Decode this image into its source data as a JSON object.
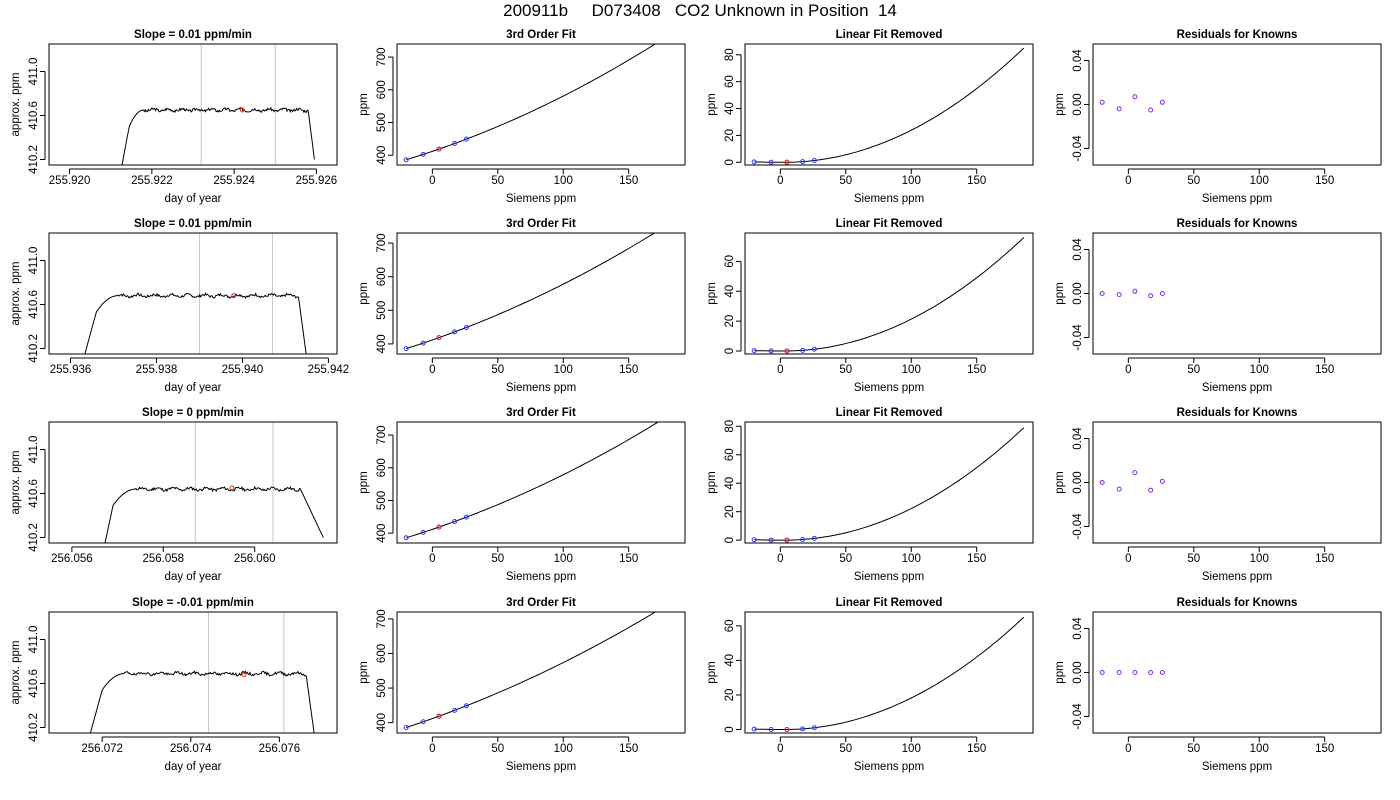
{
  "figure": {
    "title": "200911b     D073408   CO2 Unknown in Position  14"
  },
  "chart_data": [
    {
      "row": 1,
      "panels": [
        {
          "type": "line",
          "title": "Slope =  0.01  ppm/min",
          "xlabel": "day of year",
          "ylabel": "approx. ppm",
          "xlim": [
            255.9195,
            255.9265
          ],
          "ylim": [
            410.15,
            411.25
          ],
          "xticks": [
            "255.920",
            "255.922",
            "255.924",
            "255.926"
          ],
          "xtick_values": [
            255.92,
            255.922,
            255.924,
            255.926
          ],
          "yticks": [
            "410.2",
            "410.6",
            "411.0"
          ],
          "ytick_values": [
            410.2,
            410.6,
            411.0
          ],
          "vlines": [
            255.9232,
            255.925
          ],
          "marker": {
            "x": 255.9242,
            "y": 410.65,
            "color": "#e0301e"
          },
          "trace": {
            "x_start": 255.92125,
            "x_end": 255.92595,
            "plateau": 410.65,
            "rise_x": 255.92145,
            "rise_x2": 255.9218,
            "fall_x": 255.9258,
            "base": 410.1,
            "end_y": 410.2,
            "noise": 0.012,
            "seed": 3
          }
        },
        {
          "type": "line",
          "title": "3rd Order Fit",
          "xlabel": "Siemens ppm",
          "ylabel": "ppm",
          "xlim": [
            -27,
            193
          ],
          "ylim": [
            370,
            740
          ],
          "xticks": [
            "0",
            "50",
            "100",
            "150"
          ],
          "xtick_values": [
            0,
            50,
            100,
            150
          ],
          "yticks": [
            "400",
            "500",
            "600",
            "700"
          ],
          "ytick_values": [
            400,
            500,
            600,
            700
          ],
          "curve": {
            "x0": -20,
            "x1": 186,
            "a": 411.8,
            "b": 1.35,
            "c": 0.0034
          },
          "knowns": [
            -20,
            -7,
            5,
            17,
            26
          ],
          "unknown": 5
        },
        {
          "type": "line",
          "title": "Linear Fit Removed",
          "xlabel": "Siemens ppm",
          "ylabel": "ppm",
          "xlim": [
            -27,
            193
          ],
          "ylim": [
            -2,
            88
          ],
          "xticks": [
            "0",
            "50",
            "100",
            "150"
          ],
          "xtick_values": [
            0,
            50,
            100,
            150
          ],
          "yticks": [
            "0",
            "20",
            "40",
            "60",
            "80"
          ],
          "ytick_values": [
            0,
            20,
            40,
            60,
            80
          ],
          "curve": {
            "x0": -20,
            "x1": 186,
            "ymax": 85
          },
          "knowns": [
            -20,
            -7,
            5,
            17,
            26
          ],
          "unknown": 5
        },
        {
          "type": "scatter",
          "title": "Residuals for Knowns",
          "xlabel": "Siemens ppm",
          "ylabel": "ppm",
          "xlim": [
            -27,
            193
          ],
          "ylim": [
            -0.055,
            0.055
          ],
          "xticks": [
            "0",
            "50",
            "100",
            "150"
          ],
          "xtick_values": [
            0,
            50,
            100,
            150
          ],
          "yticks": [
            "-0.04",
            "0.00",
            "0.04"
          ],
          "ytick_values": [
            -0.04,
            0.0,
            0.04
          ],
          "points": [
            {
              "x": -20,
              "y": 0.002
            },
            {
              "x": -7,
              "y": -0.004
            },
            {
              "x": 5,
              "y": 0.007
            },
            {
              "x": 17,
              "y": -0.005
            },
            {
              "x": 26,
              "y": 0.002
            }
          ]
        }
      ]
    },
    {
      "row": 2,
      "panels": [
        {
          "type": "line",
          "title": "Slope =  0.01  ppm/min",
          "xlabel": "day of year",
          "ylabel": "approx. ppm",
          "xlim": [
            255.9355,
            255.9422
          ],
          "ylim": [
            410.15,
            411.25
          ],
          "xticks": [
            "255.936",
            "255.938",
            "255.940",
            "255.942"
          ],
          "xtick_values": [
            255.936,
            255.938,
            255.94,
            255.942
          ],
          "yticks": [
            "410.2",
            "410.6",
            "411.0"
          ],
          "ytick_values": [
            410.2,
            410.6,
            411.0
          ],
          "vlines": [
            255.939,
            255.9407
          ],
          "marker": {
            "x": 255.9398,
            "y": 410.68,
            "color": "#e0301e"
          },
          "trace": {
            "x_start": 255.9363,
            "x_end": 255.9415,
            "plateau": 410.68,
            "rise_x": 255.9366,
            "rise_x2": 255.9371,
            "fall_x": 255.9413,
            "base": 410.1,
            "end_y": 410.1,
            "noise": 0.012,
            "seed": 7
          }
        },
        {
          "type": "line",
          "title": "3rd Order Fit",
          "xlabel": "Siemens ppm",
          "ylabel": "ppm",
          "xlim": [
            -27,
            193
          ],
          "ylim": [
            370,
            730
          ],
          "xticks": [
            "0",
            "50",
            "100",
            "150"
          ],
          "xtick_values": [
            0,
            50,
            100,
            150
          ],
          "yticks": [
            "400",
            "500",
            "600",
            "700"
          ],
          "ytick_values": [
            400,
            500,
            600,
            700
          ],
          "curve": {
            "x0": -20,
            "x1": 186,
            "a": 411.8,
            "b": 1.35,
            "c": 0.0031
          },
          "knowns": [
            -20,
            -7,
            5,
            17,
            26
          ],
          "unknown": 5
        },
        {
          "type": "line",
          "title": "Linear Fit Removed",
          "xlabel": "Siemens ppm",
          "ylabel": "ppm",
          "xlim": [
            -27,
            193
          ],
          "ylim": [
            -2,
            79
          ],
          "xticks": [
            "0",
            "50",
            "100",
            "150"
          ],
          "xtick_values": [
            0,
            50,
            100,
            150
          ],
          "yticks": [
            "0",
            "20",
            "40",
            "60"
          ],
          "ytick_values": [
            0,
            20,
            40,
            60
          ],
          "curve": {
            "x0": -20,
            "x1": 186,
            "ymax": 76
          },
          "knowns": [
            -20,
            -7,
            5,
            17,
            26
          ],
          "unknown": 5
        },
        {
          "type": "scatter",
          "title": "Residuals for Knowns",
          "xlabel": "Siemens ppm",
          "ylabel": "ppm",
          "xlim": [
            -27,
            193
          ],
          "ylim": [
            -0.055,
            0.055
          ],
          "xticks": [
            "0",
            "50",
            "100",
            "150"
          ],
          "xtick_values": [
            0,
            50,
            100,
            150
          ],
          "yticks": [
            "-0.04",
            "0.00",
            "0.04"
          ],
          "ytick_values": [
            -0.04,
            0.0,
            0.04
          ],
          "points": [
            {
              "x": -20,
              "y": 0.0
            },
            {
              "x": -7,
              "y": -0.001
            },
            {
              "x": 5,
              "y": 0.002
            },
            {
              "x": 17,
              "y": -0.002
            },
            {
              "x": 26,
              "y": 0.0
            }
          ]
        }
      ]
    },
    {
      "row": 3,
      "panels": [
        {
          "type": "line",
          "title": "Slope =  0  ppm/min",
          "xlabel": "day of year",
          "ylabel": "approx. ppm",
          "xlim": [
            256.0555,
            256.0618
          ],
          "ylim": [
            410.15,
            411.25
          ],
          "xticks": [
            "256.056",
            "256.058",
            "256.060"
          ],
          "xtick_values": [
            256.056,
            256.058,
            256.06
          ],
          "yticks": [
            "410.2",
            "410.6",
            "411.0"
          ],
          "ytick_values": [
            410.2,
            410.6,
            411.0
          ],
          "vlines": [
            256.0587,
            256.0604
          ],
          "marker": {
            "x": 256.0595,
            "y": 410.65,
            "color": "#e0301e"
          },
          "trace": {
            "x_start": 256.0567,
            "x_end": 256.0615,
            "plateau": 410.64,
            "rise_x": 256.0569,
            "rise_x2": 256.0574,
            "fall_x": 256.061,
            "base": 410.1,
            "end_y": 410.2,
            "noise": 0.012,
            "seed": 11
          }
        },
        {
          "type": "line",
          "title": "3rd Order Fit",
          "xlabel": "Siemens ppm",
          "ylabel": "ppm",
          "xlim": [
            -27,
            193
          ],
          "ylim": [
            370,
            740
          ],
          "xticks": [
            "0",
            "50",
            "100",
            "150"
          ],
          "xtick_values": [
            0,
            50,
            100,
            150
          ],
          "yticks": [
            "400",
            "500",
            "600",
            "700"
          ],
          "ytick_values": [
            400,
            500,
            600,
            700
          ],
          "curve": {
            "x0": -20,
            "x1": 186,
            "a": 411.8,
            "b": 1.35,
            "c": 0.0032
          },
          "knowns": [
            -20,
            -7,
            5,
            17,
            26
          ],
          "unknown": 5
        },
        {
          "type": "line",
          "title": "Linear Fit Removed",
          "xlabel": "Siemens ppm",
          "ylabel": "ppm",
          "xlim": [
            -27,
            193
          ],
          "ylim": [
            -2,
            83
          ],
          "xticks": [
            "0",
            "50",
            "100",
            "150"
          ],
          "xtick_values": [
            0,
            50,
            100,
            150
          ],
          "yticks": [
            "0",
            "20",
            "40",
            "60",
            "80"
          ],
          "ytick_values": [
            0,
            20,
            40,
            60,
            80
          ],
          "curve": {
            "x0": -20,
            "x1": 186,
            "ymax": 79
          },
          "knowns": [
            -20,
            -7,
            5,
            17,
            26
          ],
          "unknown": 5
        },
        {
          "type": "scatter",
          "title": "Residuals for Knowns",
          "xlabel": "Siemens ppm",
          "ylabel": "ppm",
          "xlim": [
            -27,
            193
          ],
          "ylim": [
            -0.055,
            0.055
          ],
          "xticks": [
            "0",
            "50",
            "100",
            "150"
          ],
          "xtick_values": [
            0,
            50,
            100,
            150
          ],
          "yticks": [
            "-0.04",
            "0.00",
            "0.04"
          ],
          "ytick_values": [
            -0.04,
            0.0,
            0.04
          ],
          "points": [
            {
              "x": -20,
              "y": 0.0
            },
            {
              "x": -7,
              "y": -0.006
            },
            {
              "x": 5,
              "y": 0.009
            },
            {
              "x": 17,
              "y": -0.007
            },
            {
              "x": 26,
              "y": 0.001
            }
          ]
        }
      ]
    },
    {
      "row": 4,
      "panels": [
        {
          "type": "line",
          "title": "Slope =  -0.01  ppm/min",
          "xlabel": "day of year",
          "ylabel": "approx. ppm",
          "xlim": [
            256.0708,
            256.0773
          ],
          "ylim": [
            410.15,
            411.25
          ],
          "xticks": [
            "256.072",
            "256.074",
            "256.076"
          ],
          "xtick_values": [
            256.072,
            256.074,
            256.076
          ],
          "yticks": [
            "410.2",
            "410.6",
            "411.0"
          ],
          "ytick_values": [
            410.2,
            410.6,
            411.0
          ],
          "vlines": [
            256.0744,
            256.0761
          ],
          "marker": {
            "x": 256.0752,
            "y": 410.68,
            "color": "#e0301e"
          },
          "trace": {
            "x_start": 256.0717,
            "x_end": 256.0768,
            "plateau": 410.69,
            "rise_x": 256.072,
            "rise_x2": 256.0725,
            "fall_x": 256.0766,
            "base": 410.1,
            "end_y": 410.1,
            "noise": 0.012,
            "seed": 19
          }
        },
        {
          "type": "line",
          "title": "3rd Order Fit",
          "xlabel": "Siemens ppm",
          "ylabel": "ppm",
          "xlim": [
            -27,
            193
          ],
          "ylim": [
            370,
            720
          ],
          "xticks": [
            "0",
            "50",
            "100",
            "150"
          ],
          "xtick_values": [
            0,
            50,
            100,
            150
          ],
          "yticks": [
            "400",
            "500",
            "600",
            "700"
          ],
          "ytick_values": [
            400,
            500,
            600,
            700
          ],
          "curve": {
            "x0": -20,
            "x1": 186,
            "a": 411.8,
            "b": 1.35,
            "c": 0.0027
          },
          "knowns": [
            -20,
            -7,
            5,
            17,
            26
          ],
          "unknown": 5
        },
        {
          "type": "line",
          "title": "Linear Fit Removed",
          "xlabel": "Siemens ppm",
          "ylabel": "ppm",
          "xlim": [
            -27,
            193
          ],
          "ylim": [
            -2,
            68
          ],
          "xticks": [
            "0",
            "50",
            "100",
            "150"
          ],
          "xtick_values": [
            0,
            50,
            100,
            150
          ],
          "yticks": [
            "0",
            "20",
            "40",
            "60"
          ],
          "ytick_values": [
            0,
            20,
            40,
            60
          ],
          "curve": {
            "x0": -20,
            "x1": 186,
            "ymax": 65
          },
          "knowns": [
            -20,
            -7,
            5,
            17,
            26
          ],
          "unknown": 5
        },
        {
          "type": "scatter",
          "title": "Residuals for Knowns",
          "xlabel": "Siemens ppm",
          "ylabel": "ppm",
          "xlim": [
            -27,
            193
          ],
          "ylim": [
            -0.055,
            0.055
          ],
          "xticks": [
            "0",
            "50",
            "100",
            "150"
          ],
          "xtick_values": [
            0,
            50,
            100,
            150
          ],
          "yticks": [
            "-0.04",
            "0.00",
            "0.04"
          ],
          "ytick_values": [
            -0.04,
            0.0,
            0.04
          ],
          "points": [
            {
              "x": -20,
              "y": 0.0
            },
            {
              "x": -7,
              "y": 0.0
            },
            {
              "x": 5,
              "y": 0.0
            },
            {
              "x": 17,
              "y": 0.0
            },
            {
              "x": 26,
              "y": 0.0
            }
          ]
        }
      ]
    }
  ],
  "colors": {
    "known_points": "#2a3cf5",
    "unknown_point": "#e0301e",
    "residual_points": "#8a2be2",
    "vlines": "#c8c8c8",
    "line": "#000000"
  }
}
